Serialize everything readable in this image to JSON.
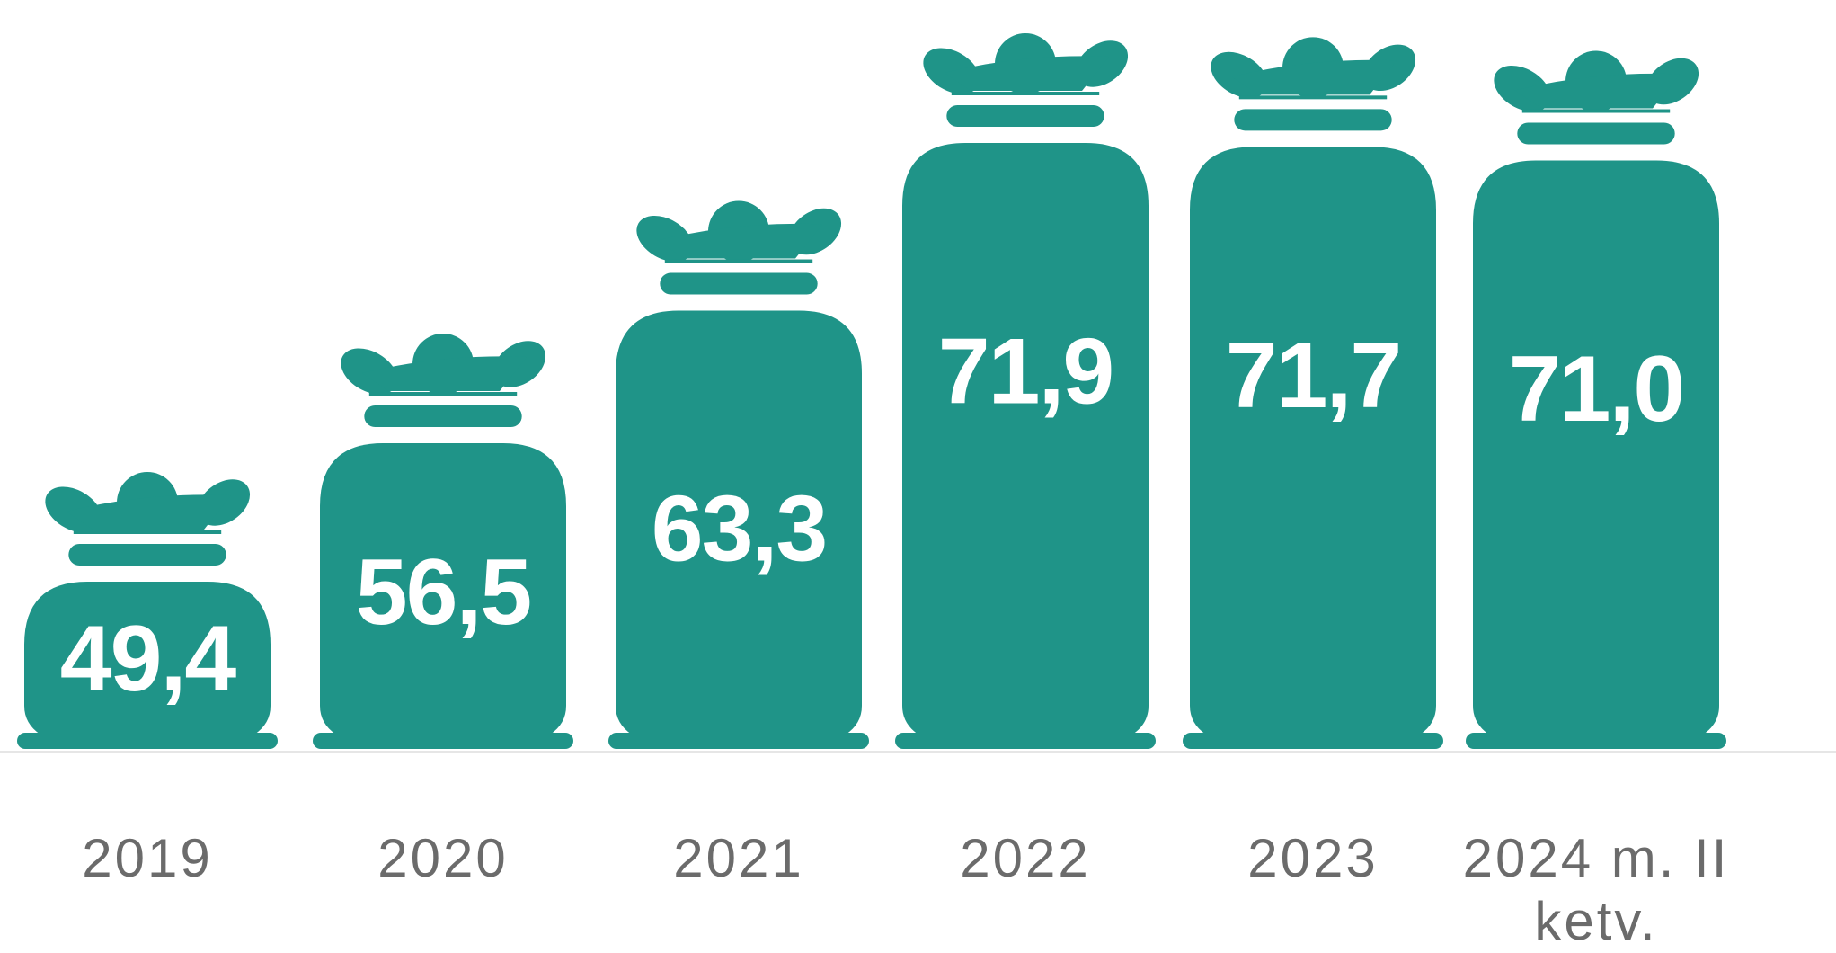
{
  "chart_data": {
    "type": "bag-bar",
    "categories": [
      "2019",
      "2020",
      "2021",
      "2022",
      "2023",
      "2024 m. II ketv."
    ],
    "values": [
      49.4,
      56.5,
      63.3,
      71.9,
      71.7,
      71.0
    ],
    "value_labels": [
      "49,4",
      "56,5",
      "63,3",
      "71,9",
      "71,7",
      "71,0"
    ],
    "color": "#1f9488"
  }
}
